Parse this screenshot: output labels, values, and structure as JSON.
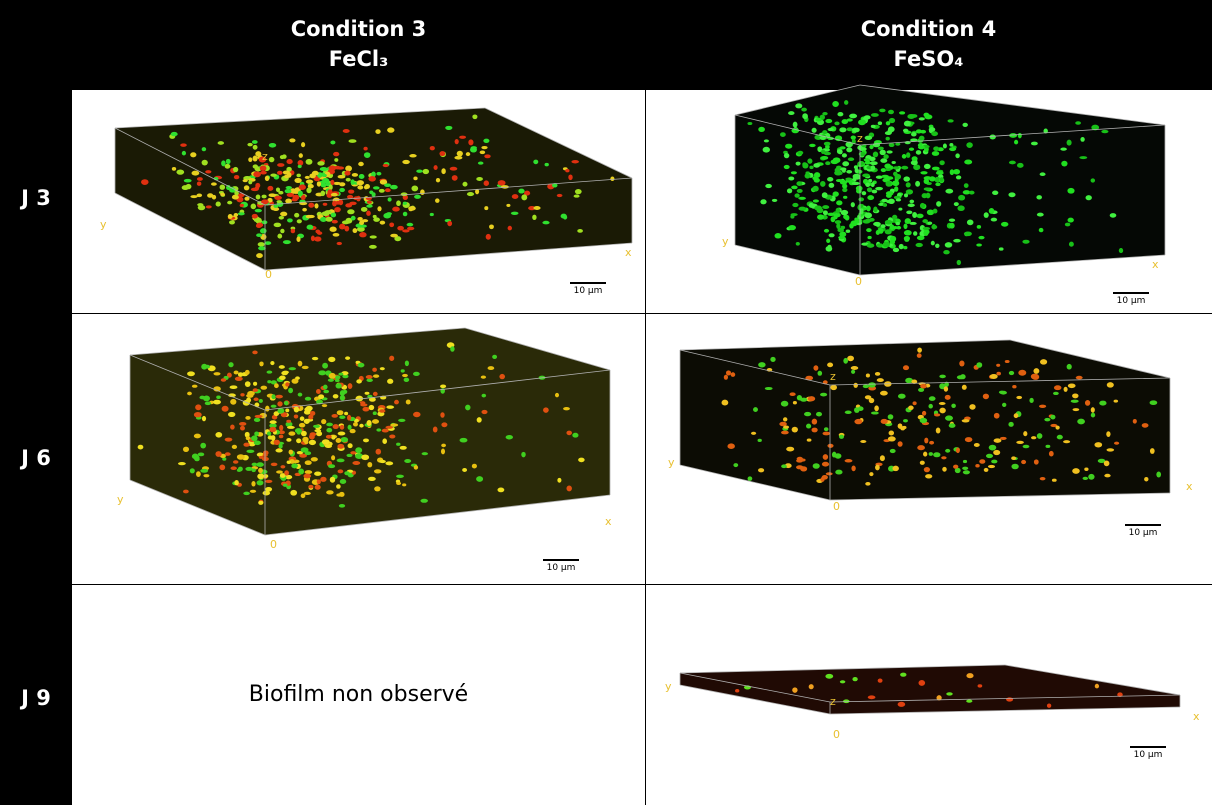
{
  "header": {
    "columns": [
      {
        "title": "Condition 3",
        "compound": "FeCl₃"
      },
      {
        "title": "Condition 4",
        "compound": "FeSO₄"
      }
    ]
  },
  "rows": [
    {
      "label": "J 3",
      "cells": [
        {
          "axes": {
            "x": "x",
            "y": "y",
            "z": "z",
            "origin": "0"
          },
          "scale": "10 µm"
        },
        {
          "axes": {
            "x": "x",
            "y": "y",
            "z": "z",
            "origin": "0"
          },
          "scale": "10 µm"
        }
      ]
    },
    {
      "label": "J 6",
      "cells": [
        {
          "axes": {
            "x": "x",
            "y": "y",
            "origin": "0"
          },
          "scale": "10 µm"
        },
        {
          "axes": {
            "x": "x",
            "y": "y",
            "z": "z",
            "origin": "0"
          },
          "scale": "10 µm"
        }
      ]
    },
    {
      "label": "J 9",
      "cells": [
        {
          "text": "Biofilm non observé"
        },
        {
          "axes": {
            "x": "x",
            "y": "y",
            "z": "z",
            "origin": "0"
          },
          "scale": "10 µm"
        }
      ]
    }
  ]
}
